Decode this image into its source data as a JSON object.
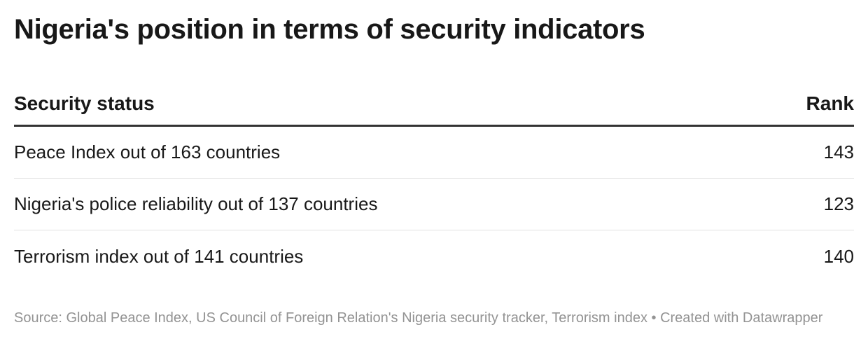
{
  "title": "Nigeria's position in terms of security indicators",
  "chart_data": {
    "type": "table",
    "columns": [
      "Security status",
      "Rank"
    ],
    "rows": [
      {
        "label": "Peace Index out of 163 countries",
        "value": "143"
      },
      {
        "label": "Nigeria's police reliability out of 137 countries",
        "value": "123"
      },
      {
        "label": "Terrorism index out of 141 countries",
        "value": "140"
      }
    ]
  },
  "footer": "Source: Global Peace Index, US Council of Foreign Relation's Nigeria security tracker, Terrorism index • Created with Datawrapper"
}
